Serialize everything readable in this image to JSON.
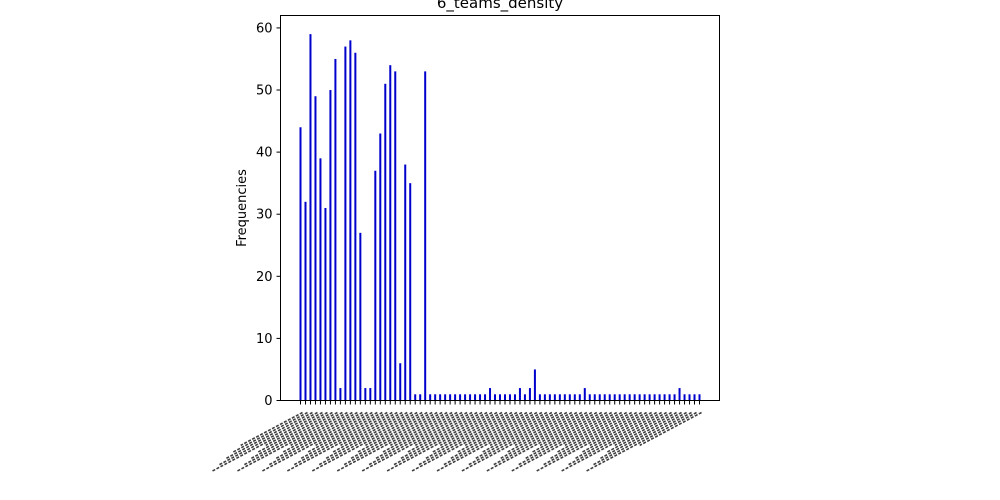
{
  "chart_data": {
    "type": "bar",
    "title": "6_teams_density",
    "xlabel": "",
    "ylabel": "Frequencies",
    "ylim": [
      0,
      62
    ],
    "yticks": [
      0,
      10,
      20,
      30,
      40,
      50,
      60
    ],
    "grid": false,
    "bar_color": "#0000cc",
    "values": [
      44,
      32,
      59,
      49,
      39,
      31,
      50,
      55,
      2,
      57,
      58,
      56,
      27,
      2,
      2,
      37,
      43,
      51,
      54,
      53,
      6,
      38,
      35,
      1,
      1,
      53,
      1,
      1,
      1,
      1,
      1,
      1,
      1,
      1,
      1,
      1,
      1,
      1,
      2,
      1,
      1,
      1,
      1,
      1,
      2,
      1,
      2,
      5,
      1,
      1,
      1,
      1,
      1,
      1,
      1,
      1,
      1,
      2,
      1,
      1,
      1,
      1,
      1,
      1,
      1,
      1,
      1,
      1,
      1,
      1,
      1,
      1,
      1,
      1,
      1,
      1,
      2,
      1,
      1,
      1,
      1
    ],
    "category_labels_note": "x tick labels are dense overlapping rotated text; individual labels are not legible"
  }
}
